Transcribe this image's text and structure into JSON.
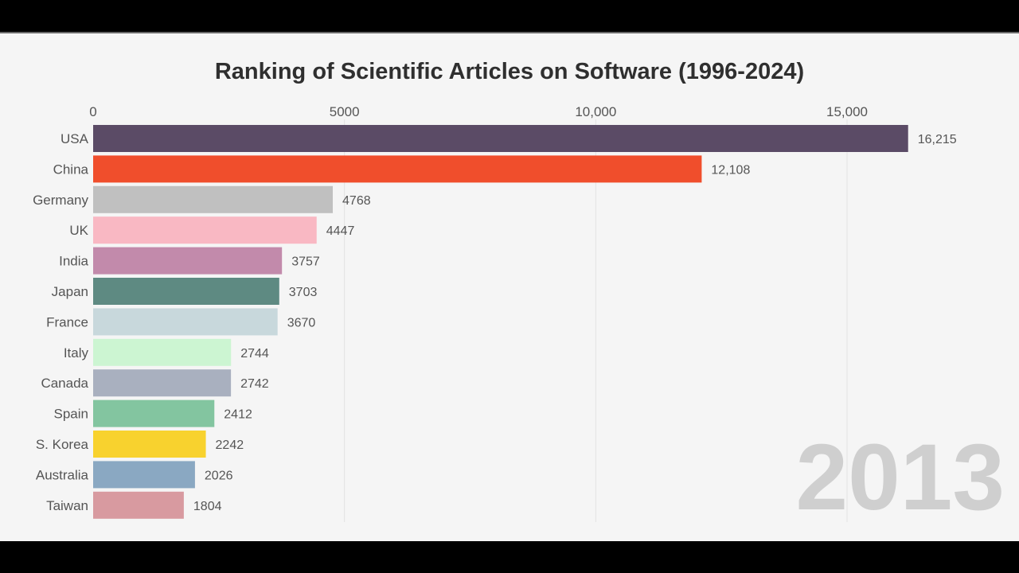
{
  "chart_data": {
    "type": "bar",
    "orientation": "horizontal",
    "title": "Ranking of Scientific Articles on Software (1996-2024)",
    "period_label": "2013",
    "xlim": [
      0,
      17000
    ],
    "xticks": [
      0,
      5000,
      10000,
      15000
    ],
    "xtick_labels": [
      "0",
      "5000",
      "10,000",
      "15,000"
    ],
    "grid": true,
    "categories": [
      "USA",
      "China",
      "Germany",
      "UK",
      "India",
      "Japan",
      "France",
      "Italy",
      "Canada",
      "Spain",
      "S. Korea",
      "Australia",
      "Taiwan"
    ],
    "values": [
      16215,
      12108,
      4768,
      4447,
      3757,
      3703,
      3670,
      2744,
      2742,
      2412,
      2242,
      2026,
      1804
    ],
    "value_labels": [
      "16,215",
      "12,108",
      "4768",
      "4447",
      "3757",
      "3703",
      "3670",
      "2744",
      "2742",
      "2412",
      "2242",
      "2026",
      "1804"
    ],
    "colors": [
      "#5b4b66",
      "#f04e2c",
      "#c0c0c0",
      "#f9b8c3",
      "#c28aab",
      "#5e8a82",
      "#c8d8dc",
      "#ccf5d2",
      "#a9b0bf",
      "#83c5a0",
      "#f8d22e",
      "#8aa8c2",
      "#d89aa0"
    ]
  }
}
